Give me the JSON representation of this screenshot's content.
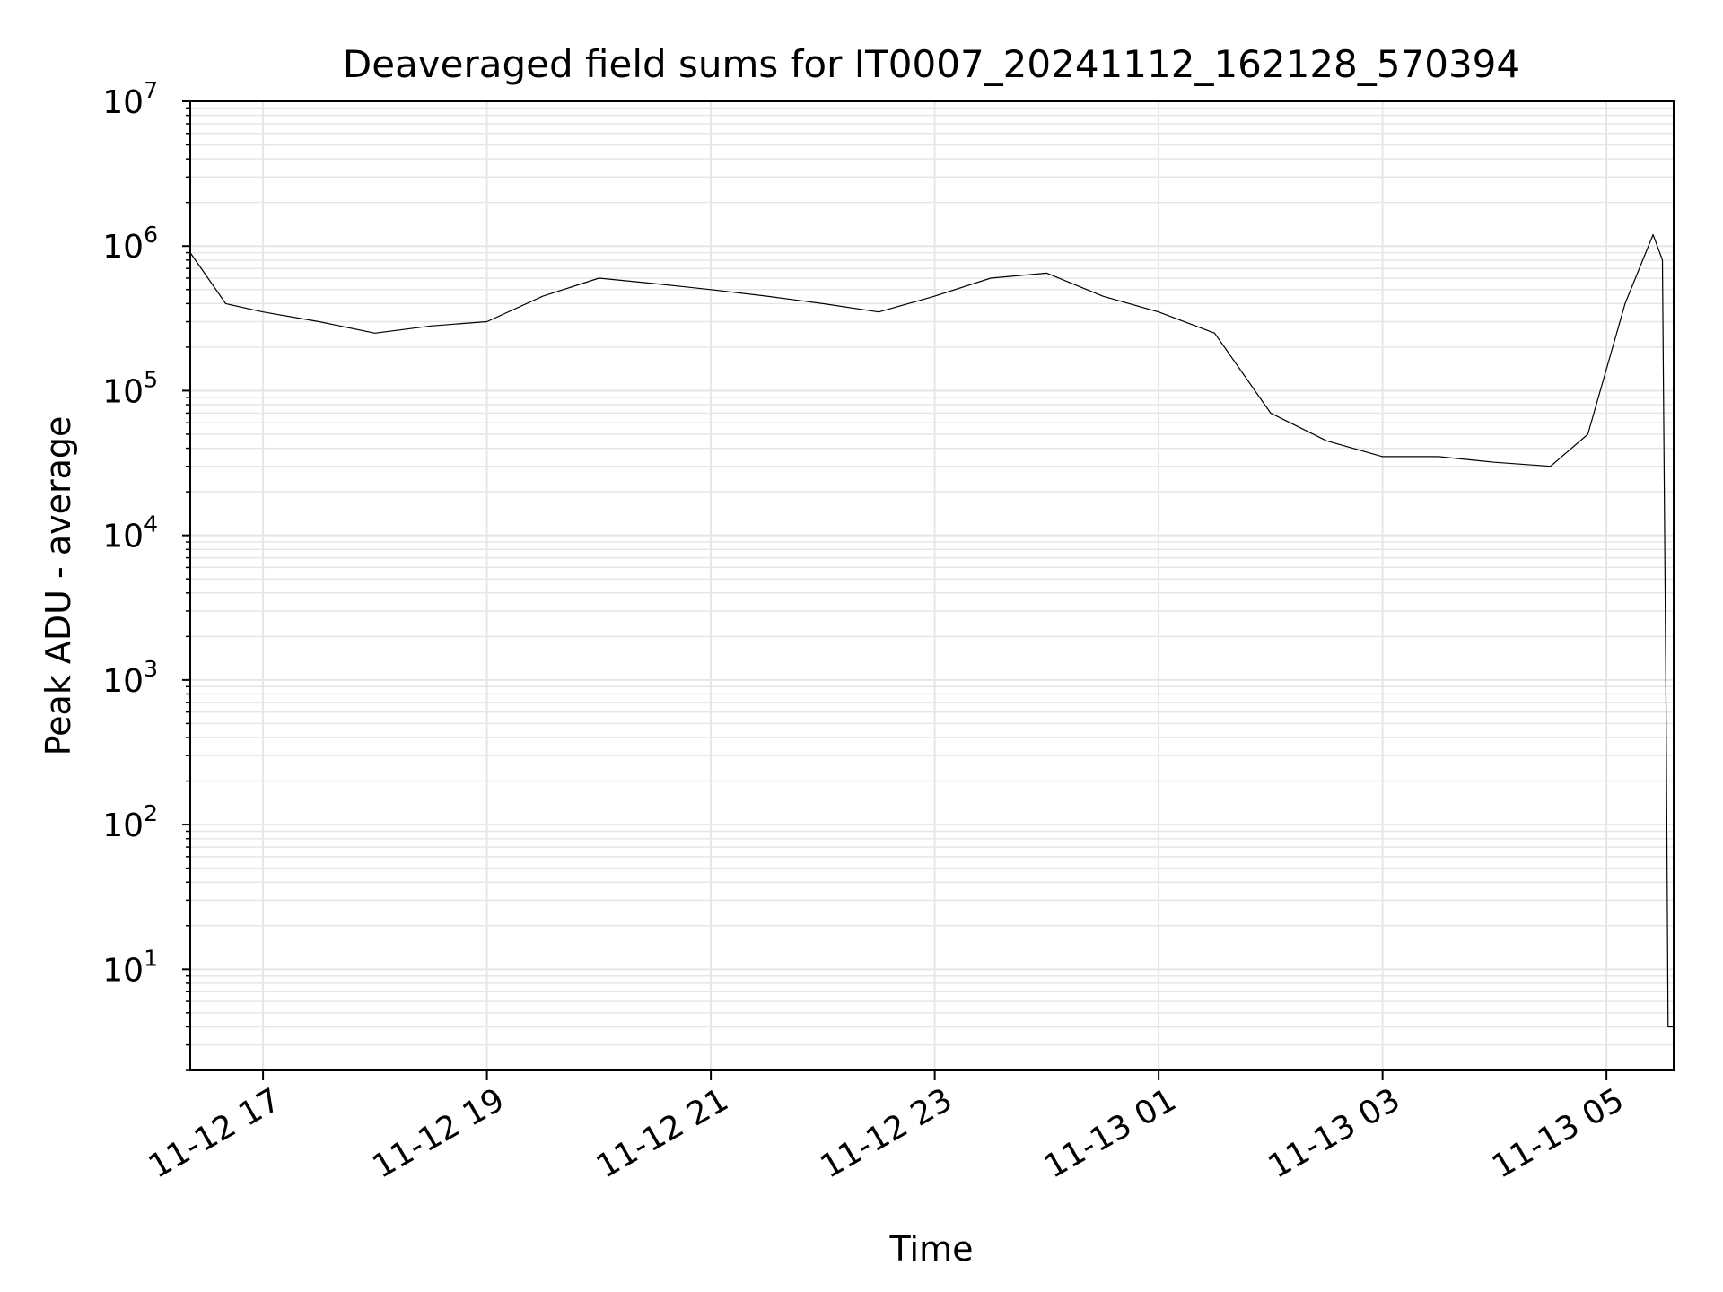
{
  "chart_data": {
    "type": "line",
    "title": "Deaveraged field sums for IT0007_20241112_162128_570394",
    "xlabel": "Time",
    "ylabel": "Peak ADU - average",
    "yscale": "log",
    "ylim": [
      2,
      10000000
    ],
    "xlim": [
      "2024-11-12 16:21",
      "2024-11-13 05:36"
    ],
    "grid": true,
    "line_color": "#000000",
    "x_ticks": [
      "11-12 17",
      "11-12 19",
      "11-12 21",
      "11-12 23",
      "11-13 01",
      "11-13 03",
      "11-13 05"
    ],
    "y_ticks": [
      {
        "value": 10,
        "base": "10",
        "exp": "1"
      },
      {
        "value": 100,
        "base": "10",
        "exp": "2"
      },
      {
        "value": 1000,
        "base": "10",
        "exp": "3"
      },
      {
        "value": 10000,
        "base": "10",
        "exp": "4"
      },
      {
        "value": 100000,
        "base": "10",
        "exp": "5"
      },
      {
        "value": 1000000,
        "base": "10",
        "exp": "6"
      },
      {
        "value": 10000000,
        "base": "10",
        "exp": "7"
      }
    ],
    "series": [
      {
        "x": [
          "2024-11-12 16:21",
          "2024-11-12 16:40",
          "2024-11-12 17:00",
          "2024-11-12 17:30",
          "2024-11-12 18:00",
          "2024-11-12 18:30",
          "2024-11-12 19:00",
          "2024-11-12 19:30",
          "2024-11-12 20:00",
          "2024-11-12 20:30",
          "2024-11-12 21:00",
          "2024-11-12 21:30",
          "2024-11-12 22:00",
          "2024-11-12 22:30",
          "2024-11-12 23:00",
          "2024-11-12 23:30",
          "2024-11-13 00:00",
          "2024-11-13 00:30",
          "2024-11-13 01:00",
          "2024-11-13 01:30",
          "2024-11-13 02:00",
          "2024-11-13 02:30",
          "2024-11-13 03:00",
          "2024-11-13 03:30",
          "2024-11-13 04:00",
          "2024-11-13 04:30",
          "2024-11-13 04:50",
          "2024-11-13 05:10",
          "2024-11-13 05:25",
          "2024-11-13 05:30",
          "2024-11-13 05:32",
          "2024-11-13 05:33",
          "2024-11-13 05:36"
        ],
        "y": [
          900000,
          400000,
          350000,
          300000,
          250000,
          280000,
          300000,
          450000,
          600000,
          550000,
          500000,
          450000,
          400000,
          350000,
          450000,
          600000,
          650000,
          450000,
          350000,
          250000,
          70000,
          45000,
          35000,
          35000,
          32000,
          30000,
          50000,
          400000,
          1200000,
          800000,
          500,
          4,
          4
        ]
      }
    ]
  }
}
